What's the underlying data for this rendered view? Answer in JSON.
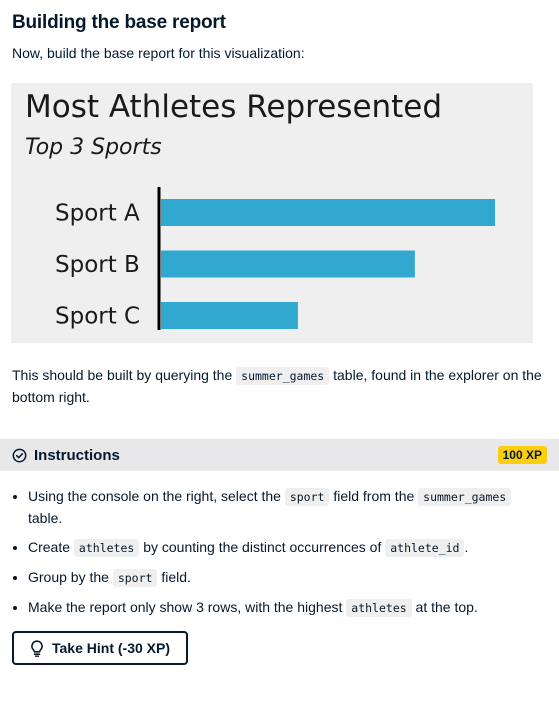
{
  "header": {
    "title": "Building the base report"
  },
  "intro": "Now, build the base report for this visualization:",
  "chart_data": {
    "type": "bar",
    "orientation": "horizontal",
    "title": "Most Athletes Represented",
    "subtitle": "Top 3 Sports",
    "categories": [
      "Sport A",
      "Sport B",
      "Sport C"
    ],
    "values": [
      100,
      76,
      41
    ],
    "colors": {
      "bar": "#31a8cf",
      "background": "#efefef",
      "axis": "#000000"
    },
    "grid": false,
    "legend": "none"
  },
  "description": {
    "before": "This should be built by querying the ",
    "code": "summer_games",
    "after": " table, found in the explorer on the bottom right."
  },
  "instructions": {
    "title": "Instructions",
    "xp": "100 XP",
    "items": [
      [
        {
          "t": "Using the console on the right, select the "
        },
        {
          "c": "sport"
        },
        {
          "t": " field from the "
        },
        {
          "c": "summer_games"
        },
        {
          "t": " table."
        }
      ],
      [
        {
          "t": "Create "
        },
        {
          "c": "athletes"
        },
        {
          "t": " by counting the distinct occurrences of "
        },
        {
          "c": "athlete_id"
        },
        {
          "t": "."
        }
      ],
      [
        {
          "t": "Group by the "
        },
        {
          "c": "sport"
        },
        {
          "t": " field."
        }
      ],
      [
        {
          "t": "Make the report only show 3 rows, with the highest "
        },
        {
          "c": "athletes"
        },
        {
          "t": " at the top."
        }
      ]
    ]
  },
  "hint": {
    "label": "Take Hint (-30 XP)"
  },
  "icons": {
    "instructions": "check-circle-icon",
    "hint": "lightbulb-icon"
  }
}
